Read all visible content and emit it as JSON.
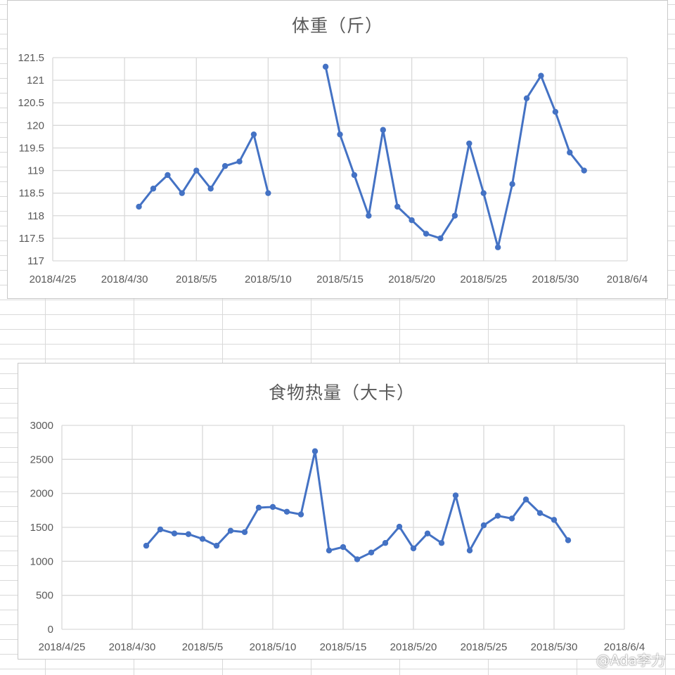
{
  "watermark": "@Ada李力",
  "colors": {
    "series": "#4472c4",
    "grid": "#d9d9d9",
    "text": "#595959"
  },
  "chart_data": [
    {
      "type": "line",
      "title": "体重（斤）",
      "xlabel": "",
      "ylabel": "",
      "grid": true,
      "legend": "none",
      "xlim": [
        "2018-04-25",
        "2018-06-04"
      ],
      "x_ticks": [
        "2018/4/25",
        "2018/4/30",
        "2018/5/5",
        "2018/5/10",
        "2018/5/15",
        "2018/5/20",
        "2018/5/25",
        "2018/5/30",
        "2018/6/4"
      ],
      "ylim": [
        117,
        121.5
      ],
      "y_ticks": [
        "117",
        "117.5",
        "118",
        "118.5",
        "119",
        "119.5",
        "120",
        "120.5",
        "121",
        "121.5"
      ],
      "series": [
        {
          "points": [
            [
              "2018-05-01",
              118.2
            ],
            [
              "2018-05-02",
              118.6
            ],
            [
              "2018-05-03",
              118.9
            ],
            [
              "2018-05-04",
              118.5
            ],
            [
              "2018-05-05",
              119.0
            ],
            [
              "2018-05-06",
              118.6
            ],
            [
              "2018-05-07",
              119.1
            ],
            [
              "2018-05-08",
              119.2
            ],
            [
              "2018-05-09",
              119.8
            ],
            [
              "2018-05-10",
              118.5
            ]
          ]
        },
        {
          "points": [
            [
              "2018-05-14",
              121.3
            ],
            [
              "2018-05-15",
              119.8
            ],
            [
              "2018-05-16",
              118.9
            ],
            [
              "2018-05-17",
              118.0
            ],
            [
              "2018-05-18",
              119.9
            ],
            [
              "2018-05-19",
              118.2
            ],
            [
              "2018-05-20",
              117.9
            ],
            [
              "2018-05-21",
              117.6
            ],
            [
              "2018-05-22",
              117.5
            ],
            [
              "2018-05-23",
              118.0
            ],
            [
              "2018-05-24",
              119.6
            ],
            [
              "2018-05-25",
              118.5
            ],
            [
              "2018-05-26",
              117.3
            ],
            [
              "2018-05-27",
              118.7
            ],
            [
              "2018-05-28",
              120.6
            ],
            [
              "2018-05-29",
              121.1
            ],
            [
              "2018-05-30",
              120.3
            ],
            [
              "2018-05-31",
              119.4
            ],
            [
              "2018-06-01",
              119.0
            ]
          ]
        }
      ]
    },
    {
      "type": "line",
      "title": "食物热量（大卡）",
      "xlabel": "",
      "ylabel": "",
      "grid": true,
      "legend": "none",
      "xlim": [
        "2018-04-25",
        "2018-06-04"
      ],
      "x_ticks": [
        "2018/4/25",
        "2018/4/30",
        "2018/5/5",
        "2018/5/10",
        "2018/5/15",
        "2018/5/20",
        "2018/5/25",
        "2018/5/30",
        "2018/6/4"
      ],
      "ylim": [
        0,
        3000
      ],
      "y_ticks": [
        "0",
        "500",
        "1000",
        "1500",
        "2000",
        "2500",
        "3000"
      ],
      "series": [
        {
          "points": [
            [
              "2018-05-01",
              1230
            ],
            [
              "2018-05-02",
              1470
            ],
            [
              "2018-05-03",
              1410
            ],
            [
              "2018-05-04",
              1400
            ],
            [
              "2018-05-05",
              1330
            ],
            [
              "2018-05-06",
              1230
            ],
            [
              "2018-05-07",
              1450
            ],
            [
              "2018-05-08",
              1430
            ],
            [
              "2018-05-09",
              1790
            ],
            [
              "2018-05-10",
              1800
            ],
            [
              "2018-05-11",
              1730
            ],
            [
              "2018-05-12",
              1690
            ],
            [
              "2018-05-13",
              2620
            ],
            [
              "2018-05-14",
              1160
            ],
            [
              "2018-05-15",
              1210
            ],
            [
              "2018-05-16",
              1030
            ],
            [
              "2018-05-17",
              1130
            ],
            [
              "2018-05-18",
              1270
            ],
            [
              "2018-05-19",
              1510
            ],
            [
              "2018-05-20",
              1190
            ],
            [
              "2018-05-21",
              1410
            ],
            [
              "2018-05-22",
              1270
            ],
            [
              "2018-05-23",
              1970
            ],
            [
              "2018-05-24",
              1160
            ],
            [
              "2018-05-25",
              1530
            ],
            [
              "2018-05-26",
              1670
            ],
            [
              "2018-05-27",
              1630
            ],
            [
              "2018-05-28",
              1910
            ],
            [
              "2018-05-29",
              1710
            ],
            [
              "2018-05-30",
              1610
            ],
            [
              "2018-05-31",
              1310
            ]
          ]
        }
      ]
    }
  ]
}
